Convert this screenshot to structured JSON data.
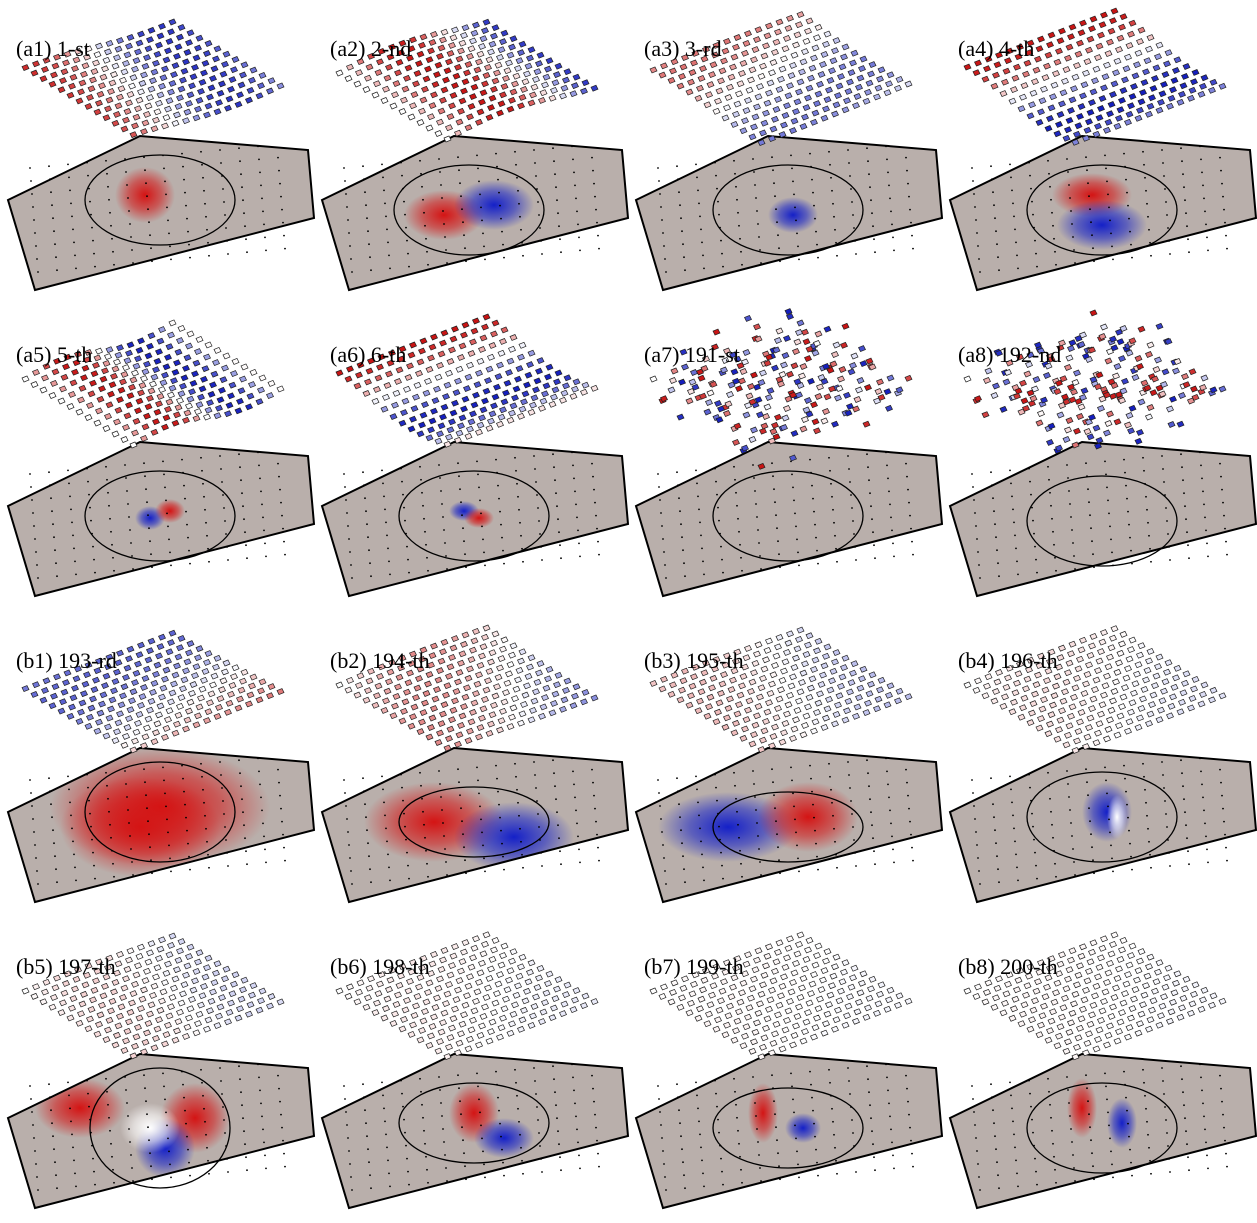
{
  "panels": [
    {
      "label": "(a1) 1-st"
    },
    {
      "label": "(a2) 2-nd"
    },
    {
      "label": "(a3) 3-rd"
    },
    {
      "label": "(a4) 4-th"
    },
    {
      "label": "(a5) 5-th"
    },
    {
      "label": "(a6) 6-th"
    },
    {
      "label": "(a7) 191-st"
    },
    {
      "label": "(a8) 192-nd"
    },
    {
      "label": "(b1) 193-rd"
    },
    {
      "label": "(b2) 194-th"
    },
    {
      "label": "(b3) 195-th"
    },
    {
      "label": "(b4) 196-th"
    },
    {
      "label": "(b5) 197-th"
    },
    {
      "label": "(b6) 198-th"
    },
    {
      "label": "(b7) 199-th"
    },
    {
      "label": "(b8) 200-th"
    }
  ]
}
